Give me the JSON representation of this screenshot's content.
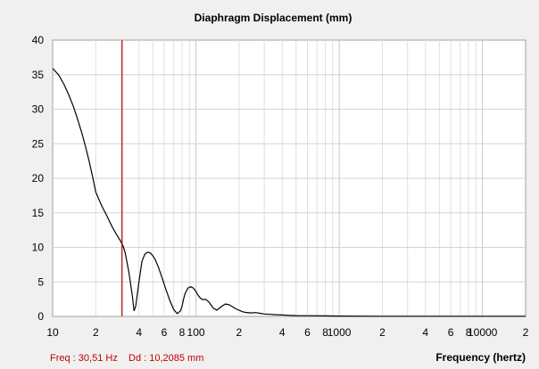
{
  "chart_data": {
    "type": "line",
    "title": "Diaphragm Displacement (mm)",
    "xlabel": "Frequency (hertz)",
    "ylabel": "",
    "x_scale": "log",
    "xlim": [
      10,
      20000
    ],
    "ylim": [
      0,
      40
    ],
    "grid": true,
    "y_ticks": [
      "0",
      "5",
      "10",
      "15",
      "20",
      "25",
      "30",
      "35",
      "40"
    ],
    "x_ticks": [
      {
        "v": 10,
        "label": "10"
      },
      {
        "v": 20,
        "label": "2"
      },
      {
        "v": 40,
        "label": "4"
      },
      {
        "v": 60,
        "label": "6"
      },
      {
        "v": 80,
        "label": "8"
      },
      {
        "v": 100,
        "label": "100"
      },
      {
        "v": 200,
        "label": "2"
      },
      {
        "v": 400,
        "label": "4"
      },
      {
        "v": 600,
        "label": "6"
      },
      {
        "v": 800,
        "label": "8"
      },
      {
        "v": 1000,
        "label": "1000"
      },
      {
        "v": 2000,
        "label": "2"
      },
      {
        "v": 4000,
        "label": "4"
      },
      {
        "v": 6000,
        "label": "6"
      },
      {
        "v": 8000,
        "label": "8"
      },
      {
        "v": 10000,
        "label": "10000"
      },
      {
        "v": 20000,
        "label": "2"
      }
    ],
    "marker": {
      "x": 30.51,
      "color": "#c00000"
    },
    "series": [
      {
        "color": "#000000",
        "x": [
          10,
          11,
          12,
          13,
          14,
          15,
          16,
          17,
          18,
          19,
          20,
          22,
          24,
          26,
          28,
          30,
          31,
          32,
          34,
          36,
          37,
          38,
          40,
          42,
          44,
          46,
          48,
          50,
          52,
          55,
          58,
          62,
          66,
          70,
          74,
          78,
          80,
          82,
          84,
          88,
          92,
          96,
          100,
          104,
          108,
          112,
          116,
          120,
          124,
          128,
          132,
          140,
          150,
          160,
          170,
          180,
          190,
          200,
          210,
          220,
          240,
          260,
          280,
          300,
          330,
          360,
          400,
          450,
          500,
          600,
          800,
          1000,
          2000,
          5000,
          10000,
          20000
        ],
        "y": [
          35.9,
          35.0,
          33.6,
          32.0,
          30.3,
          28.4,
          26.5,
          24.5,
          22.4,
          20.2,
          18.0,
          16.0,
          14.5,
          13.0,
          11.8,
          10.8,
          10.2,
          9.3,
          6.5,
          3.0,
          0.8,
          1.5,
          5.0,
          8.0,
          9.0,
          9.3,
          9.2,
          8.8,
          8.2,
          7.0,
          5.6,
          3.8,
          2.2,
          1.0,
          0.4,
          0.8,
          1.5,
          2.5,
          3.3,
          4.1,
          4.3,
          4.1,
          3.6,
          3.0,
          2.6,
          2.4,
          2.5,
          2.3,
          2.0,
          1.6,
          1.2,
          0.9,
          1.4,
          1.8,
          1.7,
          1.4,
          1.1,
          0.9,
          0.7,
          0.6,
          0.5,
          0.55,
          0.45,
          0.35,
          0.3,
          0.25,
          0.2,
          0.15,
          0.12,
          0.1,
          0.08,
          0.05,
          0.03,
          0.02,
          0.02,
          0.02
        ]
      }
    ]
  },
  "status": {
    "freq": "Freq : 30,51 Hz",
    "dd": "Dd : 10,2085 mm"
  }
}
